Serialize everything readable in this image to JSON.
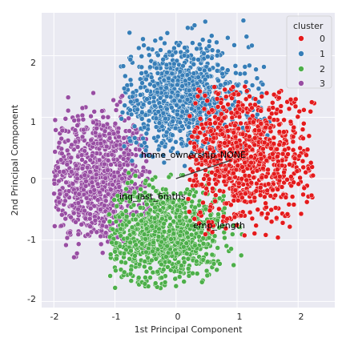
{
  "chart_data": {
    "type": "scatter",
    "xlabel": "1st Principal Component",
    "ylabel": "2nd Principal Component",
    "xlim": [
      -2.2,
      2.6
    ],
    "ylim": [
      -2.1,
      2.7
    ],
    "xticks": [
      -2,
      -1,
      0,
      1,
      2
    ],
    "yticks": [
      -2,
      -1,
      0,
      1,
      2
    ],
    "grid": true,
    "legend": {
      "title": "cluster",
      "placement": "top-right",
      "entries": [
        "0",
        "1",
        "2",
        "3"
      ]
    },
    "series": [
      {
        "name": "0",
        "color": "#e41a1c",
        "center": [
          1.1,
          0.35
        ],
        "spread": [
          0.55,
          0.55
        ],
        "range_x": [
          0.2,
          2.35
        ],
        "range_y": [
          -1.0,
          1.5
        ]
      },
      {
        "name": "1",
        "color": "#377eb8",
        "center": [
          0.1,
          1.3
        ],
        "spread": [
          0.55,
          0.45
        ],
        "range_x": [
          -0.9,
          1.6
        ],
        "range_y": [
          0.2,
          2.6
        ]
      },
      {
        "name": "2",
        "color": "#4daf4a",
        "center": [
          -0.2,
          -0.9
        ],
        "spread": [
          0.5,
          0.4
        ],
        "range_x": [
          -1.1,
          1.1
        ],
        "range_y": [
          -1.8,
          0.1
        ]
      },
      {
        "name": "3",
        "color": "#984ea3",
        "center": [
          -1.3,
          0.0
        ],
        "spread": [
          0.45,
          0.55
        ],
        "range_x": [
          -2.0,
          -0.4
        ],
        "range_y": [
          -1.3,
          1.4
        ]
      }
    ],
    "annotations": [
      {
        "text": "home_ownership_NONE",
        "x": -0.6,
        "y": 0.4
      },
      {
        "text": "inq_last_6mths",
        "x": -0.95,
        "y": -0.3
      },
      {
        "text": "emp_length",
        "x": 0.25,
        "y": -0.75
      }
    ],
    "arrows": [
      {
        "x1": 0,
        "y1": 0,
        "x2": 0.9,
        "y2": 0.3
      }
    ]
  }
}
